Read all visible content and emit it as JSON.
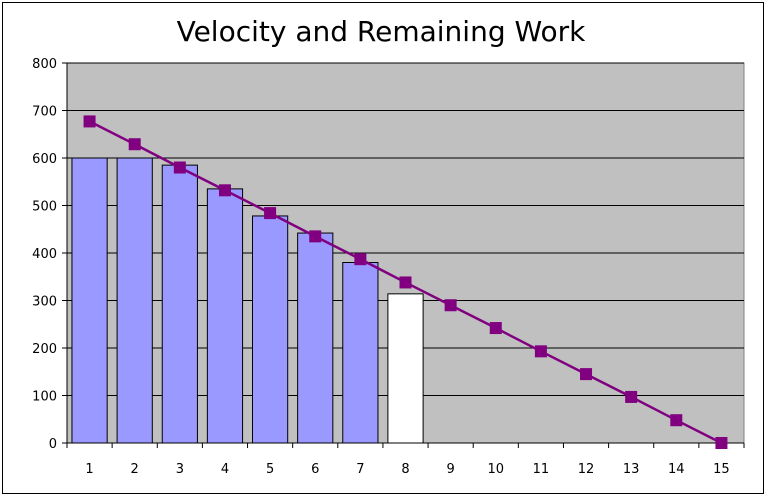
{
  "chart_data": {
    "type": "bar+line",
    "title": "Velocity and Remaining Work",
    "xlabel": "",
    "ylabel": "",
    "ylim": [
      0,
      800
    ],
    "yticks": [
      0,
      100,
      200,
      300,
      400,
      500,
      600,
      700,
      800
    ],
    "categories": [
      "1",
      "2",
      "3",
      "4",
      "5",
      "6",
      "7",
      "8",
      "9",
      "10",
      "11",
      "12",
      "13",
      "14",
      "15"
    ],
    "bars": {
      "values": [
        600,
        600,
        585,
        535,
        478,
        442,
        380,
        314
      ],
      "highlight_index": 7,
      "color": "#9999ff",
      "highlight_color": "#ffffff"
    },
    "line": {
      "values": [
        677,
        629,
        580,
        532,
        484,
        435,
        387,
        338,
        290,
        242,
        193,
        145,
        97,
        48,
        0
      ],
      "color": "#800080"
    },
    "plot_background": "#c0c0c0",
    "grid": true,
    "legend": "none"
  }
}
